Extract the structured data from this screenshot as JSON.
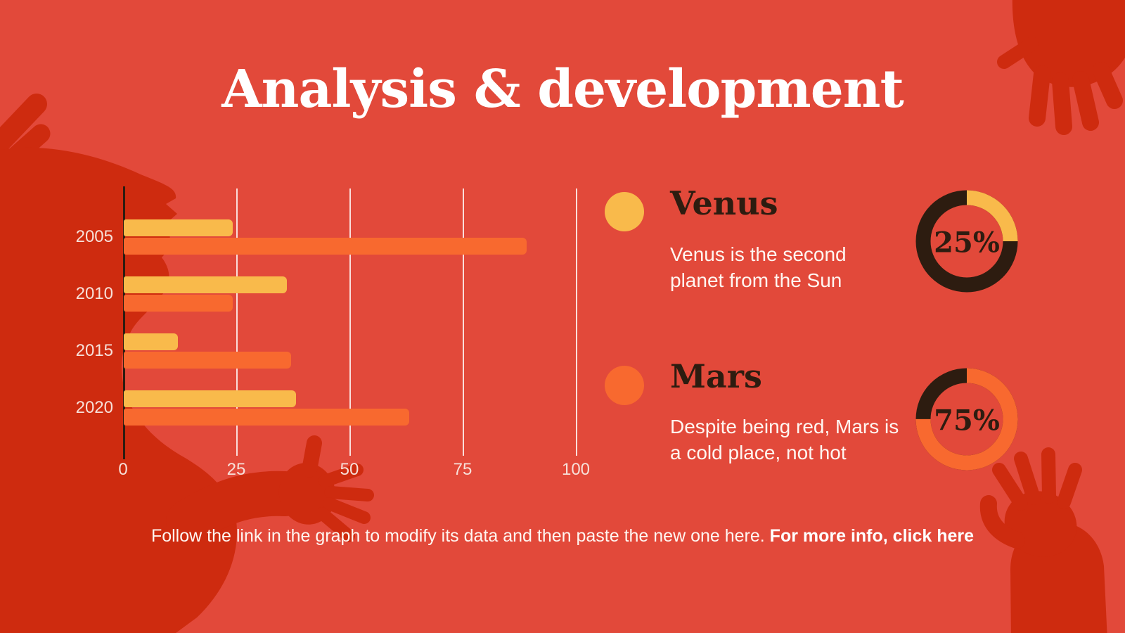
{
  "slide": {
    "title": "Analysis & development",
    "caption": {
      "text": "Follow the link in the graph to modify its data and then paste the new one here. ",
      "link_text": "For more info, click here"
    }
  },
  "planets": [
    {
      "name": "Venus",
      "description": "Venus is the second planet from the Sun",
      "percent_label": "25%",
      "percent": 25,
      "color": "#F9BA4B"
    },
    {
      "name": "Mars",
      "description": "Despite being red, Mars is a cold place, not hot",
      "percent_label": "75%",
      "percent": 75,
      "color": "#F8692F"
    }
  ],
  "chart_data": [
    {
      "type": "bar",
      "orientation": "horizontal",
      "title": "",
      "categories": [
        "2005",
        "2010",
        "2015",
        "2020"
      ],
      "series": [
        {
          "name": "Venus",
          "color": "#F9BA4B",
          "values": [
            24,
            36,
            12,
            38
          ]
        },
        {
          "name": "Mars",
          "color": "#F8692F",
          "values": [
            89,
            24,
            37,
            63
          ]
        }
      ],
      "x_ticks": [
        "0",
        "25",
        "50",
        "75",
        "100"
      ],
      "xlim": [
        0,
        100
      ],
      "grid": true,
      "legend_position": "right"
    },
    {
      "type": "pie",
      "label": "Venus donut",
      "values": [
        25,
        75
      ],
      "colors": [
        "#F9BA4B",
        "#2D1C10"
      ],
      "center_label": "25%"
    },
    {
      "type": "pie",
      "label": "Mars donut",
      "values": [
        75,
        25
      ],
      "colors": [
        "#F8692F",
        "#2D1C10"
      ],
      "center_label": "75%"
    }
  ],
  "colors": {
    "background": "#E2493A",
    "decor": "#CE2B0F",
    "dark": "#2D1C10",
    "grid": "rgba(255,255,255,0.82)",
    "tick_text": "#F7E0D9",
    "body_text": "#FFF6F1",
    "title_text": "#FFFFFF"
  }
}
